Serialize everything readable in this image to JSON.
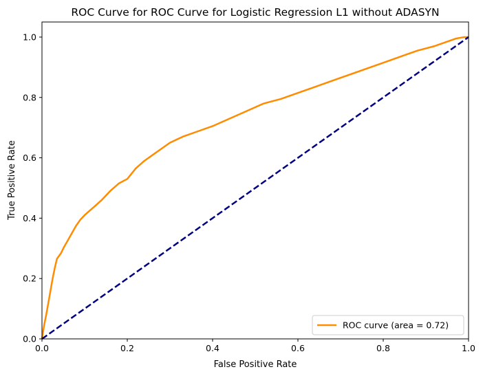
{
  "chart_data": {
    "type": "line",
    "title": "ROC Curve for ROC Curve for Logistic Regression L1 without ADASYN",
    "xlabel": "False Positive Rate",
    "ylabel": "True Positive Rate",
    "xlim": [
      0.0,
      1.0
    ],
    "ylim": [
      0.0,
      1.05
    ],
    "xticks": [
      "0.0",
      "0.2",
      "0.4",
      "0.6",
      "0.8",
      "1.0"
    ],
    "yticks": [
      "0.0",
      "0.2",
      "0.4",
      "0.6",
      "0.8",
      "1.0"
    ],
    "grid": false,
    "legend_position": "lower-right",
    "series": [
      {
        "name": "ROC curve (area = 0.72)",
        "color": "#ff8c00",
        "style": "solid",
        "x": [
          0.0,
          0.005,
          0.01,
          0.015,
          0.02,
          0.025,
          0.03,
          0.035,
          0.04,
          0.045,
          0.05,
          0.06,
          0.07,
          0.08,
          0.09,
          0.1,
          0.12,
          0.14,
          0.16,
          0.18,
          0.2,
          0.22,
          0.24,
          0.26,
          0.28,
          0.3,
          0.33,
          0.36,
          0.4,
          0.44,
          0.48,
          0.52,
          0.56,
          0.6,
          0.64,
          0.68,
          0.72,
          0.76,
          0.8,
          0.84,
          0.88,
          0.92,
          0.95,
          0.97,
          0.99,
          1.0
        ],
        "y": [
          0.0,
          0.045,
          0.08,
          0.12,
          0.16,
          0.2,
          0.235,
          0.265,
          0.275,
          0.285,
          0.3,
          0.325,
          0.35,
          0.375,
          0.395,
          0.41,
          0.435,
          0.46,
          0.49,
          0.515,
          0.53,
          0.565,
          0.59,
          0.61,
          0.63,
          0.65,
          0.67,
          0.685,
          0.705,
          0.73,
          0.755,
          0.78,
          0.795,
          0.815,
          0.835,
          0.855,
          0.875,
          0.895,
          0.915,
          0.935,
          0.955,
          0.97,
          0.985,
          0.995,
          1.0,
          1.0
        ]
      },
      {
        "name": "",
        "color": "#000080",
        "style": "dashed",
        "x": [
          0.0,
          1.0
        ],
        "y": [
          0.0,
          1.0
        ]
      }
    ]
  }
}
